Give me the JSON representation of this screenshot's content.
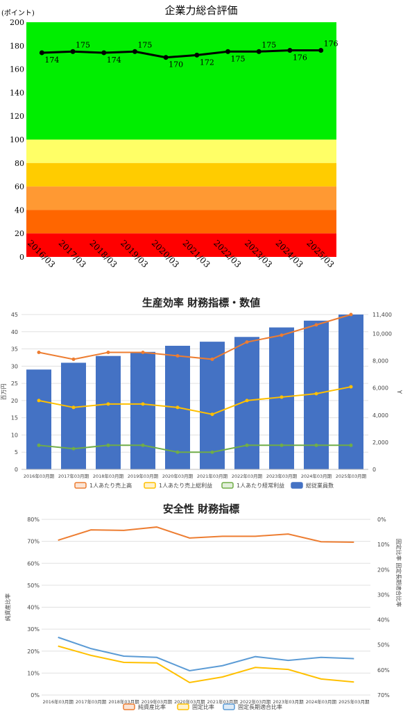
{
  "chart_data": [
    {
      "type": "line",
      "title": "企業力総合評価",
      "ylabel": "(ポイント)",
      "ylim": [
        0,
        200
      ],
      "yticks": [
        0,
        20,
        40,
        60,
        80,
        100,
        120,
        140,
        160,
        180,
        200
      ],
      "categories": [
        "2016/03",
        "2017/03",
        "2018/03",
        "2019/03",
        "2020/03",
        "2021/03",
        "2022/03",
        "2023/03",
        "2024/03",
        "2025/03"
      ],
      "series": [
        {
          "values": [
            174,
            175,
            174,
            175,
            170,
            172,
            175,
            175,
            176,
            176
          ]
        }
      ],
      "bands": [
        {
          "from": 100,
          "to": 200,
          "color": "#00ee00"
        },
        {
          "from": 80,
          "to": 100,
          "color": "#ffff66"
        },
        {
          "from": 60,
          "to": 80,
          "color": "#ffcc00"
        },
        {
          "from": 40,
          "to": 60,
          "color": "#ff9933"
        },
        {
          "from": 20,
          "to": 40,
          "color": "#ff6600"
        },
        {
          "from": 0,
          "to": 20,
          "color": "#ff0000"
        }
      ],
      "line_color": "#000000"
    },
    {
      "type": "bar",
      "title": "生産効率 財務指標・数値",
      "ylabel": "百万円",
      "y2label": "Y",
      "ylim": [
        0,
        45
      ],
      "y2lim": [
        0,
        11400
      ],
      "yticks": [
        0,
        5,
        10,
        15,
        20,
        25,
        30,
        35,
        40,
        45
      ],
      "y2ticks": [
        "0",
        "2,000",
        "4,000",
        "6,000",
        "8,000",
        "10,000",
        "11,400"
      ],
      "y2tick_values": [
        0,
        2000,
        4000,
        6000,
        8000,
        10000,
        11400
      ],
      "categories": [
        "2016年03月期",
        "2017年03月期",
        "2018年03月期",
        "2019年03月期",
        "2020年03月期",
        "2021年03月期",
        "2022年03月期",
        "2023年03月期",
        "2024年03月期",
        "2025年03月期"
      ],
      "bar_series": {
        "name": "総従業員数",
        "axis": "right",
        "color": "#4472c4",
        "values": [
          7350,
          7850,
          8350,
          8650,
          9100,
          9400,
          9750,
          10450,
          10950,
          11400
        ]
      },
      "series": [
        {
          "name": "1人あたり売上高",
          "axis": "left",
          "color": "#ed7d31",
          "fill": "#fbe4d5",
          "values": [
            34,
            32,
            34,
            34,
            33,
            32,
            37,
            39,
            42,
            45
          ]
        },
        {
          "name": "1人あたり売上総利益",
          "axis": "left",
          "color": "#ffc000",
          "fill": "#fff2cc",
          "values": [
            20,
            18,
            19,
            19,
            18,
            16,
            20,
            21,
            22,
            24
          ]
        },
        {
          "name": "1人あたり経常利益",
          "axis": "left",
          "color": "#70ad47",
          "fill": "#e2efda",
          "values": [
            7,
            6,
            7,
            7,
            5,
            5,
            7,
            7,
            7,
            7
          ]
        }
      ]
    },
    {
      "type": "line",
      "title": "安全性 財務指標",
      "ylabel": "純資産比率",
      "y2label": "固定比率 固定長期適合比率",
      "ylim": [
        0,
        80
      ],
      "y2lim": [
        70,
        0
      ],
      "yticks": [
        "0%",
        "10%",
        "20%",
        "30%",
        "40%",
        "50%",
        "60%",
        "70%",
        "80%"
      ],
      "y2ticks": [
        "0%",
        "10%",
        "20%",
        "30%",
        "40%",
        "50%",
        "60%",
        "70%"
      ],
      "categories": [
        "2016年03月期",
        "2017年03月期",
        "2018年03月期",
        "2019年03月期",
        "2020年03月期",
        "2021年03月期",
        "2022年03月期",
        "2023年03月期",
        "2024年03月期",
        "2025年03月期"
      ],
      "series": [
        {
          "name": "純資産比率",
          "axis": "left",
          "color": "#ed7d31",
          "fill": "#fbe4d5",
          "values": [
            70.5,
            75.2,
            75.0,
            76.5,
            71.5,
            72.3,
            72.3,
            73.3,
            69.8,
            69.6
          ]
        },
        {
          "name": "固定比率",
          "axis": "right_inverted",
          "color": "#ffc000",
          "fill": "#fff2cc",
          "values": [
            50.5,
            54.2,
            57.0,
            57.2,
            65.0,
            62.8,
            59.0,
            59.8,
            63.6,
            64.8
          ]
        },
        {
          "name": "固定長期適合比率",
          "axis": "right_inverted",
          "color": "#5b9bd5",
          "fill": "#deebf7",
          "values": [
            47.0,
            51.5,
            54.5,
            55.0,
            60.3,
            58.3,
            54.7,
            56.2,
            55.0,
            55.5
          ]
        }
      ]
    }
  ]
}
